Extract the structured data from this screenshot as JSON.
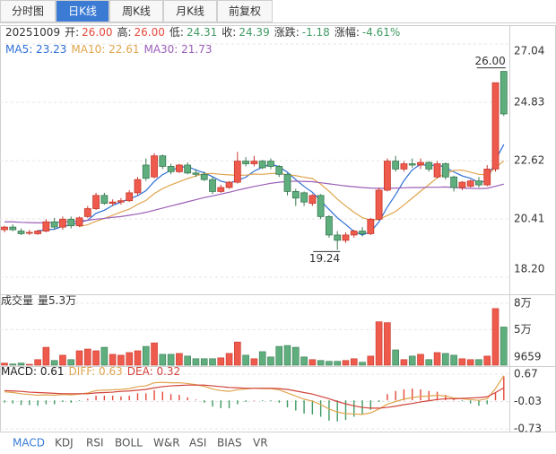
{
  "tabs": [
    "分时图",
    "日K线",
    "周K线",
    "月K线",
    "前复权"
  ],
  "active_tab": 1,
  "info": {
    "date": "20251009",
    "items": [
      {
        "label": "开:",
        "value": "26.00",
        "color": "#e5483b"
      },
      {
        "label": "高:",
        "value": "26.00",
        "color": "#e5483b"
      },
      {
        "label": "低:",
        "value": "24.31",
        "color": "#3f9a63"
      },
      {
        "label": "收:",
        "value": "24.39",
        "color": "#3f9a63"
      },
      {
        "label": "涨跌:",
        "value": "-1.18",
        "color": "#3f9a63"
      },
      {
        "label": "涨幅:",
        "value": "-4.61%",
        "color": "#3f9a63"
      }
    ]
  },
  "indicator_tabs": [
    "MACD",
    "KDJ",
    "RSI",
    "BOLL",
    "W&R",
    "ASI",
    "BIAS",
    "VR"
  ],
  "active_indicator": 0,
  "chart_data": [
    {
      "type": "candlestick",
      "up_color": "#ee5a4b",
      "up_border": "#c8392e",
      "down_color": "#5fae7e",
      "down_border": "#3a7a52",
      "ylim": [
        18.2,
        27.04
      ],
      "yticks": [
        27.04,
        24.83,
        22.62,
        20.41,
        {
          "value": 18.2,
          "label": "18.20"
        }
      ],
      "grid": true,
      "high_label": "26.00",
      "low_label": "19.24",
      "candles": [
        [
          20.0,
          20.15,
          19.9,
          20.1
        ],
        [
          20.1,
          20.2,
          19.95,
          20.0
        ],
        [
          19.95,
          20.05,
          19.8,
          19.85
        ],
        [
          19.9,
          20.0,
          19.8,
          19.9
        ],
        [
          19.85,
          20.0,
          19.8,
          19.95
        ],
        [
          19.95,
          20.4,
          19.9,
          20.3
        ],
        [
          20.3,
          20.45,
          20.0,
          20.1
        ],
        [
          20.1,
          20.5,
          20.0,
          20.4
        ],
        [
          20.4,
          20.5,
          20.05,
          20.15
        ],
        [
          20.15,
          20.5,
          20.1,
          20.45
        ],
        [
          20.5,
          20.9,
          20.45,
          20.8
        ],
        [
          20.8,
          21.4,
          20.75,
          21.3
        ],
        [
          21.3,
          21.4,
          20.95,
          21.0
        ],
        [
          21.0,
          21.15,
          20.9,
          21.05
        ],
        [
          21.05,
          21.2,
          20.95,
          21.1
        ],
        [
          21.1,
          21.5,
          21.05,
          21.4
        ],
        [
          21.4,
          22.0,
          21.3,
          21.9
        ],
        [
          22.45,
          22.7,
          21.85,
          21.95
        ],
        [
          22.0,
          22.9,
          21.95,
          22.8
        ],
        [
          22.8,
          22.85,
          22.3,
          22.4
        ],
        [
          22.4,
          22.5,
          22.1,
          22.2
        ],
        [
          22.2,
          22.5,
          22.15,
          22.45
        ],
        [
          22.45,
          22.55,
          22.1,
          22.15
        ],
        [
          22.15,
          22.3,
          22.0,
          22.1
        ],
        [
          22.1,
          22.2,
          21.85,
          21.9
        ],
        [
          21.9,
          22.0,
          21.35,
          21.45
        ],
        [
          21.45,
          21.7,
          21.4,
          21.6
        ],
        [
          21.6,
          21.85,
          21.55,
          21.8
        ],
        [
          21.8,
          22.95,
          21.75,
          22.6
        ],
        [
          22.6,
          22.75,
          22.4,
          22.5
        ],
        [
          22.5,
          22.8,
          22.4,
          22.6
        ],
        [
          22.6,
          22.65,
          22.3,
          22.35
        ],
        [
          22.6,
          22.7,
          22.3,
          22.4
        ],
        [
          22.4,
          22.45,
          22.0,
          22.1
        ],
        [
          22.1,
          22.15,
          21.3,
          21.45
        ],
        [
          21.45,
          21.55,
          20.9,
          21.2
        ],
        [
          21.4,
          21.45,
          20.9,
          21.05
        ],
        [
          21.0,
          21.35,
          20.9,
          21.3
        ],
        [
          21.3,
          21.35,
          20.4,
          20.5
        ],
        [
          20.5,
          20.55,
          19.7,
          19.8
        ],
        [
          19.8,
          19.95,
          19.24,
          19.6
        ],
        [
          19.6,
          19.9,
          19.5,
          19.8
        ],
        [
          19.8,
          20.0,
          19.7,
          19.95
        ],
        [
          19.95,
          20.1,
          19.75,
          19.85
        ],
        [
          19.85,
          20.45,
          19.8,
          20.4
        ],
        [
          20.4,
          21.6,
          20.35,
          21.5
        ],
        [
          21.5,
          22.7,
          21.45,
          22.6
        ],
        [
          22.6,
          22.8,
          22.2,
          22.3
        ],
        [
          22.3,
          22.6,
          22.2,
          22.5
        ],
        [
          22.5,
          22.7,
          22.35,
          22.45
        ],
        [
          22.45,
          22.7,
          22.3,
          22.55
        ],
        [
          22.55,
          22.6,
          22.2,
          22.3
        ],
        [
          22.0,
          22.6,
          21.95,
          22.5
        ],
        [
          22.5,
          22.55,
          21.9,
          22.0
        ],
        [
          22.0,
          22.05,
          21.45,
          21.6
        ],
        [
          21.6,
          21.85,
          21.5,
          21.8
        ],
        [
          21.65,
          21.9,
          21.6,
          21.85
        ],
        [
          21.85,
          22.0,
          21.6,
          21.7
        ],
        [
          21.7,
          22.45,
          21.65,
          22.3
        ],
        [
          22.3,
          25.57,
          22.2,
          25.57
        ],
        [
          26.0,
          26.0,
          24.31,
          24.39
        ]
      ],
      "series": [
        {
          "name": "MA5: 23.23",
          "color": "#2f6fd6",
          "values": [
            null,
            null,
            null,
            null,
            19.96,
            20.0,
            20.02,
            20.13,
            20.18,
            20.28,
            20.36,
            20.62,
            20.74,
            20.92,
            21.05,
            21.17,
            21.29,
            21.48,
            21.83,
            22.09,
            22.25,
            22.36,
            22.4,
            22.26,
            22.16,
            22.01,
            21.84,
            21.77,
            21.87,
            21.99,
            22.22,
            22.37,
            22.49,
            22.39,
            22.18,
            21.9,
            21.64,
            21.42,
            21.1,
            20.77,
            20.45,
            20.2,
            19.93,
            19.8,
            19.92,
            20.3,
            20.86,
            21.33,
            21.86,
            22.27,
            22.48,
            22.42,
            22.46,
            22.36,
            22.19,
            22.04,
            21.95,
            21.79,
            21.85,
            22.64,
            23.23
          ]
        },
        {
          "name": "MA10: 22.61",
          "color": "#e0a54e",
          "values": [
            null,
            null,
            null,
            null,
            null,
            null,
            null,
            null,
            null,
            20.12,
            20.19,
            20.32,
            20.43,
            20.55,
            20.67,
            20.78,
            20.96,
            21.11,
            21.37,
            21.56,
            21.7,
            21.82,
            21.94,
            22.04,
            22.12,
            22.13,
            22.1,
            22.08,
            22.06,
            22.07,
            22.11,
            22.1,
            22.13,
            22.13,
            22.08,
            22.05,
            21.99,
            21.94,
            21.73,
            21.46,
            21.16,
            20.9,
            20.66,
            20.46,
            20.36,
            20.39,
            20.54,
            20.69,
            20.94,
            21.2,
            21.46,
            21.71,
            21.97,
            22.13,
            22.25,
            22.26,
            22.18,
            22.1,
            22.08,
            22.35,
            22.61
          ]
        },
        {
          "name": "MA30: 21.73",
          "color": "#9b5fb8",
          "values": [
            20.3,
            20.3,
            20.28,
            20.27,
            20.26,
            20.27,
            20.28,
            20.3,
            20.31,
            20.33,
            20.36,
            20.4,
            20.43,
            20.47,
            20.5,
            20.55,
            20.6,
            20.66,
            20.74,
            20.82,
            20.9,
            20.98,
            21.06,
            21.14,
            21.22,
            21.28,
            21.35,
            21.42,
            21.5,
            21.57,
            21.64,
            21.7,
            21.76,
            21.8,
            21.83,
            21.84,
            21.83,
            21.82,
            21.78,
            21.74,
            21.7,
            21.66,
            21.63,
            21.6,
            21.58,
            21.57,
            21.58,
            21.58,
            21.59,
            21.6,
            21.6,
            21.61,
            21.61,
            21.62,
            21.6,
            21.58,
            21.57,
            21.56,
            21.57,
            21.65,
            21.73
          ]
        }
      ]
    },
    {
      "type": "bar",
      "title": "成交量",
      "subtitle": "量5.3万",
      "ylim": [
        9659,
        80000
      ],
      "yticks": [
        {
          "value": 80000,
          "label": "8万"
        },
        {
          "value": 50000,
          "label": "5万"
        },
        9659
      ],
      "values": [
        12000,
        11000,
        12000,
        10000,
        16000,
        30000,
        15000,
        21000,
        16000,
        26000,
        28000,
        26000,
        30000,
        22000,
        21000,
        24000,
        26000,
        31000,
        35000,
        22000,
        22000,
        23000,
        20000,
        17000,
        17000,
        17000,
        18000,
        23000,
        36000,
        21000,
        17000,
        25000,
        19000,
        31000,
        32000,
        30000,
        19000,
        16000,
        15000,
        14000,
        14000,
        15000,
        17000,
        13000,
        20000,
        59000,
        58000,
        27000,
        16000,
        20000,
        22000,
        16000,
        24000,
        23000,
        21000,
        17000,
        16000,
        16000,
        20000,
        74000,
        53000
      ]
    },
    {
      "type": "macd",
      "up_color": "#e5483b",
      "down_color": "#3f9a63",
      "ylim": [
        -0.73,
        0.67
      ],
      "yticks": [
        0.67,
        -0.03,
        -0.73
      ],
      "series": [
        {
          "name": "MACD: 0.61",
          "color": "#222222",
          "values": [
            -0.06,
            -0.08,
            -0.12,
            -0.12,
            -0.14,
            -0.1,
            -0.1,
            -0.04,
            -0.06,
            -0.02,
            0.04,
            0.12,
            0.12,
            0.12,
            0.1,
            0.12,
            0.18,
            0.18,
            0.26,
            0.22,
            0.16,
            0.14,
            0.08,
            0.02,
            -0.06,
            -0.16,
            -0.2,
            -0.2,
            -0.1,
            -0.04,
            0.0,
            -0.02,
            -0.02,
            -0.06,
            -0.18,
            -0.26,
            -0.34,
            -0.36,
            -0.42,
            -0.52,
            -0.54,
            -0.5,
            -0.42,
            -0.36,
            -0.24,
            -0.04,
            0.16,
            0.24,
            0.28,
            0.3,
            0.28,
            0.24,
            0.22,
            0.14,
            0.04,
            -0.02,
            -0.08,
            -0.14,
            -0.1,
            0.2,
            0.61
          ]
        },
        {
          "name": "DIFF: 0.63",
          "color": "#e0a54e",
          "values": [
            0.22,
            0.2,
            0.17,
            0.15,
            0.13,
            0.14,
            0.13,
            0.15,
            0.14,
            0.16,
            0.19,
            0.25,
            0.26,
            0.27,
            0.28,
            0.3,
            0.35,
            0.37,
            0.45,
            0.46,
            0.45,
            0.45,
            0.43,
            0.4,
            0.36,
            0.29,
            0.25,
            0.23,
            0.27,
            0.29,
            0.31,
            0.3,
            0.3,
            0.27,
            0.19,
            0.11,
            0.03,
            -0.02,
            -0.11,
            -0.22,
            -0.3,
            -0.34,
            -0.35,
            -0.36,
            -0.32,
            -0.22,
            -0.1,
            -0.03,
            0.03,
            0.07,
            0.1,
            0.11,
            0.13,
            0.11,
            0.06,
            0.04,
            0.02,
            0.0,
            0.04,
            0.3,
            0.63
          ]
        },
        {
          "name": "DEA: 0.32",
          "color": "#d2433a",
          "values": [
            0.25,
            0.24,
            0.23,
            0.21,
            0.2,
            0.19,
            0.18,
            0.17,
            0.17,
            0.17,
            0.17,
            0.19,
            0.2,
            0.21,
            0.23,
            0.24,
            0.26,
            0.28,
            0.32,
            0.35,
            0.37,
            0.38,
            0.39,
            0.39,
            0.39,
            0.37,
            0.35,
            0.33,
            0.32,
            0.31,
            0.31,
            0.31,
            0.31,
            0.3,
            0.28,
            0.24,
            0.2,
            0.16,
            0.1,
            0.04,
            -0.03,
            -0.09,
            -0.14,
            -0.18,
            -0.2,
            -0.2,
            -0.18,
            -0.15,
            -0.11,
            -0.08,
            -0.04,
            -0.01,
            0.02,
            0.04,
            0.04,
            0.05,
            0.06,
            0.07,
            0.09,
            0.2,
            0.32
          ]
        }
      ]
    }
  ]
}
